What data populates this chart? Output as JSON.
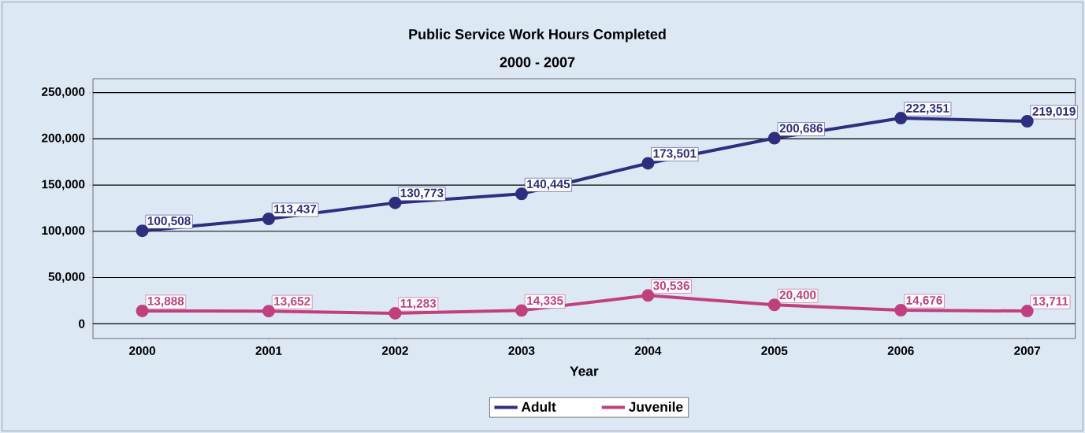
{
  "chart_data": {
    "type": "line",
    "title": "Public Service Work Hours Completed",
    "subtitle": "2000 - 2007",
    "xlabel": "Year",
    "categories": [
      "2000",
      "2001",
      "2002",
      "2003",
      "2004",
      "2005",
      "2006",
      "2007"
    ],
    "series": [
      {
        "name": "Adult",
        "color": "#2e2e7e",
        "values": [
          100508,
          113437,
          130773,
          140445,
          173501,
          200686,
          222351,
          219019
        ],
        "value_labels": [
          "100,508",
          "113,437",
          "130,773",
          "140,445",
          "173,501",
          "200,686",
          "222,351",
          "219,019"
        ]
      },
      {
        "name": "Juvenile",
        "color": "#c0407f",
        "values": [
          13888,
          13652,
          11283,
          14335,
          30536,
          20400,
          14676,
          13711
        ],
        "value_labels": [
          "13,888",
          "13,652",
          "11,283",
          "14,335",
          "30,536",
          "20,400",
          "14,676",
          "13,711"
        ]
      }
    ],
    "ylim": [
      -16000,
      265000
    ],
    "yticks": [
      {
        "value": 0,
        "label": "0"
      },
      {
        "value": 50000,
        "label": "50,000"
      },
      {
        "value": 100000,
        "label": "100,000"
      },
      {
        "value": 150000,
        "label": "150,000"
      },
      {
        "value": 200000,
        "label": "200,000"
      },
      {
        "value": 250000,
        "label": "250,000"
      }
    ],
    "grid": "y",
    "legend": "bottom",
    "marker": "circle",
    "line_style": "solid"
  }
}
